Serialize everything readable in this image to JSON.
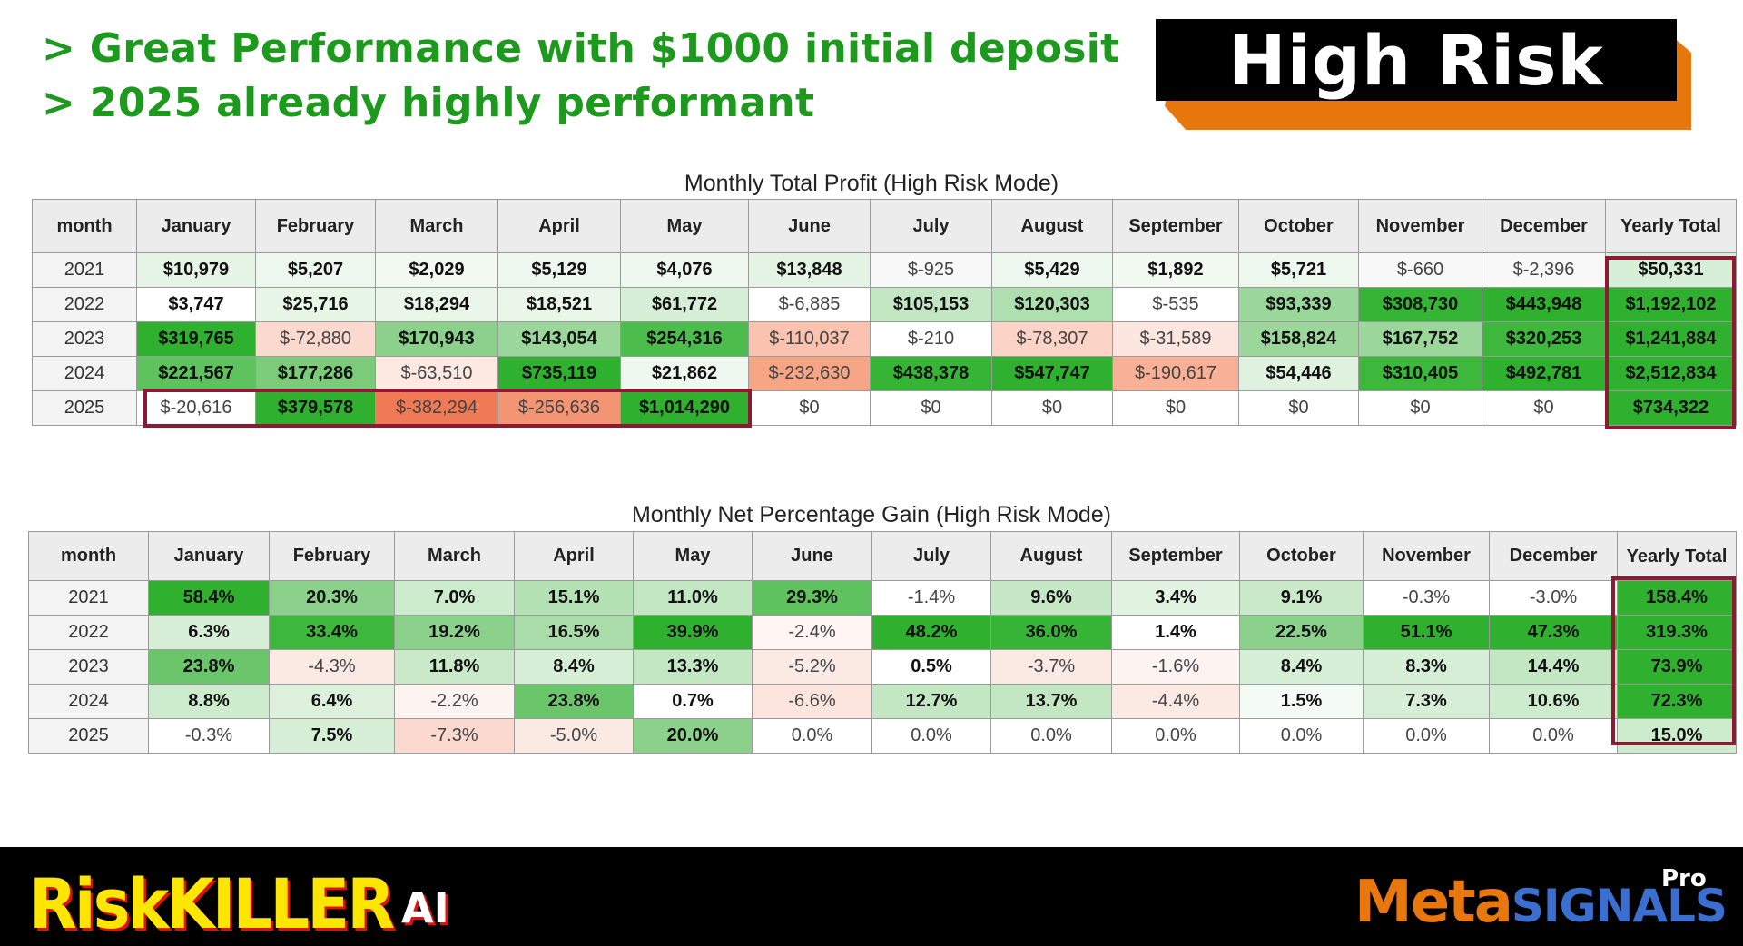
{
  "headlines": [
    "> Great Performance with $1000 initial deposit",
    "> 2025 already highly performant"
  ],
  "badge": "High Risk",
  "colors": {
    "headline": "#1d9a1d",
    "badge_accent": "#e8770e",
    "highlight_box": "#8c1a33",
    "strong_green": "#2fb12f",
    "mid_green": "#8bd18b",
    "light_green": "#cdebcd",
    "strong_red": "#f07a55",
    "light_red": "#fbd9cf"
  },
  "profit_table": {
    "title": "Monthly Total Profit (High Risk Mode)",
    "headers": [
      "month",
      "January",
      "February",
      "March",
      "April",
      "May",
      "June",
      "July",
      "August",
      "September",
      "October",
      "November",
      "December",
      "Yearly Total"
    ],
    "rows": [
      {
        "year": "2021",
        "cells": [
          {
            "v": "$10,979",
            "c": "#e6f4e6",
            "b": true
          },
          {
            "v": "$5,207",
            "c": "#edf7ed",
            "b": true
          },
          {
            "v": "$2,029",
            "c": "#f1f9f1",
            "b": true
          },
          {
            "v": "$5,129",
            "c": "#edf7ed",
            "b": true
          },
          {
            "v": "$4,076",
            "c": "#eff8ef",
            "b": true
          },
          {
            "v": "$13,848",
            "c": "#e4f3e4",
            "b": true
          },
          {
            "v": "$-925",
            "c": "#f8f8f8",
            "b": false
          },
          {
            "v": "$5,429",
            "c": "#edf7ed",
            "b": true
          },
          {
            "v": "$1,892",
            "c": "#f1f9f1",
            "b": true
          },
          {
            "v": "$5,721",
            "c": "#edf7ed",
            "b": true
          },
          {
            "v": "$-660",
            "c": "#f8f8f8",
            "b": false
          },
          {
            "v": "$-2,396",
            "c": "#f8f8f8",
            "b": false
          },
          {
            "v": "$50,331",
            "c": "#d6efd6",
            "b": true
          }
        ]
      },
      {
        "year": "2022",
        "cells": [
          {
            "v": "$3,747",
            "c": "#ffffff",
            "b": true
          },
          {
            "v": "$25,716",
            "c": "#e8f6e8",
            "b": true
          },
          {
            "v": "$18,294",
            "c": "#eaf6ea",
            "b": true
          },
          {
            "v": "$18,521",
            "c": "#eaf6ea",
            "b": true
          },
          {
            "v": "$61,772",
            "c": "#d6efd6",
            "b": true
          },
          {
            "v": "$-6,885",
            "c": "#ffffff",
            "b": false
          },
          {
            "v": "$105,153",
            "c": "#c2e7c2",
            "b": true
          },
          {
            "v": "$120,303",
            "c": "#aedfae",
            "b": true
          },
          {
            "v": "$-535",
            "c": "#ffffff",
            "b": false
          },
          {
            "v": "$93,339",
            "c": "#9bd69b",
            "b": true
          },
          {
            "v": "$308,730",
            "c": "#36b436",
            "b": true
          },
          {
            "v": "$443,948",
            "c": "#2fb12f",
            "b": true
          },
          {
            "v": "$1,192,102",
            "c": "#2fb12f",
            "b": true
          }
        ]
      },
      {
        "year": "2023",
        "cells": [
          {
            "v": "$319,765",
            "c": "#2fb12f",
            "b": true
          },
          {
            "v": "$-72,880",
            "c": "#fbd9cf",
            "b": false
          },
          {
            "v": "$170,943",
            "c": "#8bd18b",
            "b": true
          },
          {
            "v": "$143,054",
            "c": "#9bd69b",
            "b": true
          },
          {
            "v": "$254,316",
            "c": "#4cbd4c",
            "b": true
          },
          {
            "v": "$-110,037",
            "c": "#fac2af",
            "b": false
          },
          {
            "v": "$-210",
            "c": "#ffffff",
            "b": false
          },
          {
            "v": "$-78,307",
            "c": "#fbd4c7",
            "b": false
          },
          {
            "v": "$-31,589",
            "c": "#fde6df",
            "b": false
          },
          {
            "v": "$158,824",
            "c": "#9bd69b",
            "b": true
          },
          {
            "v": "$167,752",
            "c": "#9bd69b",
            "b": true
          },
          {
            "v": "$320,253",
            "c": "#3db83d",
            "b": true
          },
          {
            "v": "$1,241,884",
            "c": "#2fb12f",
            "b": true
          }
        ]
      },
      {
        "year": "2024",
        "cells": [
          {
            "v": "$221,567",
            "c": "#5ec35e",
            "b": true
          },
          {
            "v": "$177,286",
            "c": "#7bcb7b",
            "b": true
          },
          {
            "v": "$-63,510",
            "c": "#fde9e2",
            "b": false
          },
          {
            "v": "$735,119",
            "c": "#2fb12f",
            "b": true
          },
          {
            "v": "$21,862",
            "c": "#eef8ee",
            "b": true
          },
          {
            "v": "$-232,630",
            "c": "#f6a585",
            "b": false
          },
          {
            "v": "$438,378",
            "c": "#36b436",
            "b": true
          },
          {
            "v": "$547,747",
            "c": "#2fb12f",
            "b": true
          },
          {
            "v": "$-190,617",
            "c": "#f8b197",
            "b": false
          },
          {
            "v": "$54,446",
            "c": "#dff1df",
            "b": true
          },
          {
            "v": "$310,405",
            "c": "#3db83d",
            "b": true
          },
          {
            "v": "$492,781",
            "c": "#2fb12f",
            "b": true
          },
          {
            "v": "$2,512,834",
            "c": "#2fb12f",
            "b": true
          }
        ]
      },
      {
        "year": "2025",
        "cells": [
          {
            "v": "$-20,616",
            "c": "#ffffff",
            "b": false
          },
          {
            "v": "$379,578",
            "c": "#2fb12f",
            "b": true
          },
          {
            "v": "$-382,294",
            "c": "#f07a55",
            "b": false
          },
          {
            "v": "$-256,636",
            "c": "#f39473",
            "b": false
          },
          {
            "v": "$1,014,290",
            "c": "#2fb12f",
            "b": true
          },
          {
            "v": "$0",
            "c": "#ffffff",
            "b": false
          },
          {
            "v": "$0",
            "c": "#ffffff",
            "b": false
          },
          {
            "v": "$0",
            "c": "#ffffff",
            "b": false
          },
          {
            "v": "$0",
            "c": "#ffffff",
            "b": false
          },
          {
            "v": "$0",
            "c": "#ffffff",
            "b": false
          },
          {
            "v": "$0",
            "c": "#ffffff",
            "b": false
          },
          {
            "v": "$0",
            "c": "#ffffff",
            "b": false
          },
          {
            "v": "$734,322",
            "c": "#2fb12f",
            "b": true
          }
        ]
      }
    ]
  },
  "percent_table": {
    "title": "Monthly Net Percentage Gain (High Risk Mode)",
    "headers": [
      "month",
      "January",
      "February",
      "March",
      "April",
      "May",
      "June",
      "July",
      "August",
      "September",
      "October",
      "November",
      "December",
      "Yearly Total"
    ],
    "rows": [
      {
        "year": "2021",
        "cells": [
          {
            "v": "58.4%",
            "c": "#2fb12f",
            "b": true
          },
          {
            "v": "20.3%",
            "c": "#8bd18b",
            "b": true
          },
          {
            "v": "7.0%",
            "c": "#cdebcd",
            "b": true
          },
          {
            "v": "15.1%",
            "c": "#b5e2b5",
            "b": true
          },
          {
            "v": "11.0%",
            "c": "#c2e7c2",
            "b": true
          },
          {
            "v": "29.3%",
            "c": "#5ec35e",
            "b": true
          },
          {
            "v": "-1.4%",
            "c": "#ffffff",
            "b": false
          },
          {
            "v": "9.6%",
            "c": "#c6e8c6",
            "b": true
          },
          {
            "v": "3.4%",
            "c": "#e2f3e2",
            "b": true
          },
          {
            "v": "9.1%",
            "c": "#c9e9c9",
            "b": true
          },
          {
            "v": "-0.3%",
            "c": "#ffffff",
            "b": false
          },
          {
            "v": "-3.0%",
            "c": "#ffffff",
            "b": false
          },
          {
            "v": "158.4%",
            "c": "#2fb12f",
            "b": true
          }
        ]
      },
      {
        "year": "2022",
        "cells": [
          {
            "v": "6.3%",
            "c": "#d6efd6",
            "b": true
          },
          {
            "v": "33.4%",
            "c": "#3db83d",
            "b": true
          },
          {
            "v": "19.2%",
            "c": "#8bd18b",
            "b": true
          },
          {
            "v": "16.5%",
            "c": "#a9dca9",
            "b": true
          },
          {
            "v": "39.9%",
            "c": "#2fb12f",
            "b": true
          },
          {
            "v": "-2.4%",
            "c": "#fff5f2",
            "b": false
          },
          {
            "v": "48.2%",
            "c": "#2fb12f",
            "b": true
          },
          {
            "v": "36.0%",
            "c": "#36b436",
            "b": true
          },
          {
            "v": "1.4%",
            "c": "#ffffff",
            "b": true
          },
          {
            "v": "22.5%",
            "c": "#8bd18b",
            "b": true
          },
          {
            "v": "51.1%",
            "c": "#2fb12f",
            "b": true
          },
          {
            "v": "47.3%",
            "c": "#2fb12f",
            "b": true
          },
          {
            "v": "319.3%",
            "c": "#2fb12f",
            "b": true
          }
        ]
      },
      {
        "year": "2023",
        "cells": [
          {
            "v": "23.8%",
            "c": "#6bc66b",
            "b": true
          },
          {
            "v": "-4.3%",
            "c": "#fbeae4",
            "b": false
          },
          {
            "v": "11.8%",
            "c": "#c9e9c9",
            "b": true
          },
          {
            "v": "8.4%",
            "c": "#d6efd6",
            "b": true
          },
          {
            "v": "13.3%",
            "c": "#c2e7c2",
            "b": true
          },
          {
            "v": "-5.2%",
            "c": "#fbeae4",
            "b": false
          },
          {
            "v": "0.5%",
            "c": "#ffffff",
            "b": true
          },
          {
            "v": "-3.7%",
            "c": "#fbeae4",
            "b": false
          },
          {
            "v": "-1.6%",
            "c": "#fdf3f0",
            "b": false
          },
          {
            "v": "8.4%",
            "c": "#d6efd6",
            "b": true
          },
          {
            "v": "8.3%",
            "c": "#d6efd6",
            "b": true
          },
          {
            "v": "14.4%",
            "c": "#c2e7c2",
            "b": true
          },
          {
            "v": "73.9%",
            "c": "#2fb12f",
            "b": true
          }
        ]
      },
      {
        "year": "2024",
        "cells": [
          {
            "v": "8.8%",
            "c": "#cdebcd",
            "b": true
          },
          {
            "v": "6.4%",
            "c": "#dcf0dc",
            "b": true
          },
          {
            "v": "-2.2%",
            "c": "#fdf3f0",
            "b": false
          },
          {
            "v": "23.8%",
            "c": "#6bc66b",
            "b": true
          },
          {
            "v": "0.7%",
            "c": "#ffffff",
            "b": true
          },
          {
            "v": "-6.6%",
            "c": "#fbe5dd",
            "b": false
          },
          {
            "v": "12.7%",
            "c": "#c2e7c2",
            "b": true
          },
          {
            "v": "13.7%",
            "c": "#c2e7c2",
            "b": true
          },
          {
            "v": "-4.4%",
            "c": "#fbeae4",
            "b": false
          },
          {
            "v": "1.5%",
            "c": "#f4faf4",
            "b": true
          },
          {
            "v": "7.3%",
            "c": "#d6efd6",
            "b": true
          },
          {
            "v": "10.6%",
            "c": "#cdebcd",
            "b": true
          },
          {
            "v": "72.3%",
            "c": "#2fb12f",
            "b": true
          }
        ]
      },
      {
        "year": "2025",
        "cells": [
          {
            "v": "-0.3%",
            "c": "#ffffff",
            "b": false
          },
          {
            "v": "7.5%",
            "c": "#d6efd6",
            "b": true
          },
          {
            "v": "-7.3%",
            "c": "#fbd9cf",
            "b": false
          },
          {
            "v": "-5.0%",
            "c": "#fbeae4",
            "b": false
          },
          {
            "v": "20.0%",
            "c": "#8bd18b",
            "b": true
          },
          {
            "v": "0.0%",
            "c": "#ffffff",
            "b": false
          },
          {
            "v": "0.0%",
            "c": "#ffffff",
            "b": false
          },
          {
            "v": "0.0%",
            "c": "#ffffff",
            "b": false
          },
          {
            "v": "0.0%",
            "c": "#ffffff",
            "b": false
          },
          {
            "v": "0.0%",
            "c": "#ffffff",
            "b": false
          },
          {
            "v": "0.0%",
            "c": "#ffffff",
            "b": false
          },
          {
            "v": "0.0%",
            "c": "#ffffff",
            "b": false
          },
          {
            "v": "15.0%",
            "c": "#cdebcd",
            "b": true
          }
        ]
      }
    ]
  },
  "footer": {
    "left_logo_main": "RiskKILLER",
    "left_logo_suffix": "AI",
    "right_logo_meta": "Meta",
    "right_logo_signals": "SIGNALS",
    "right_logo_pro": "Pro"
  }
}
